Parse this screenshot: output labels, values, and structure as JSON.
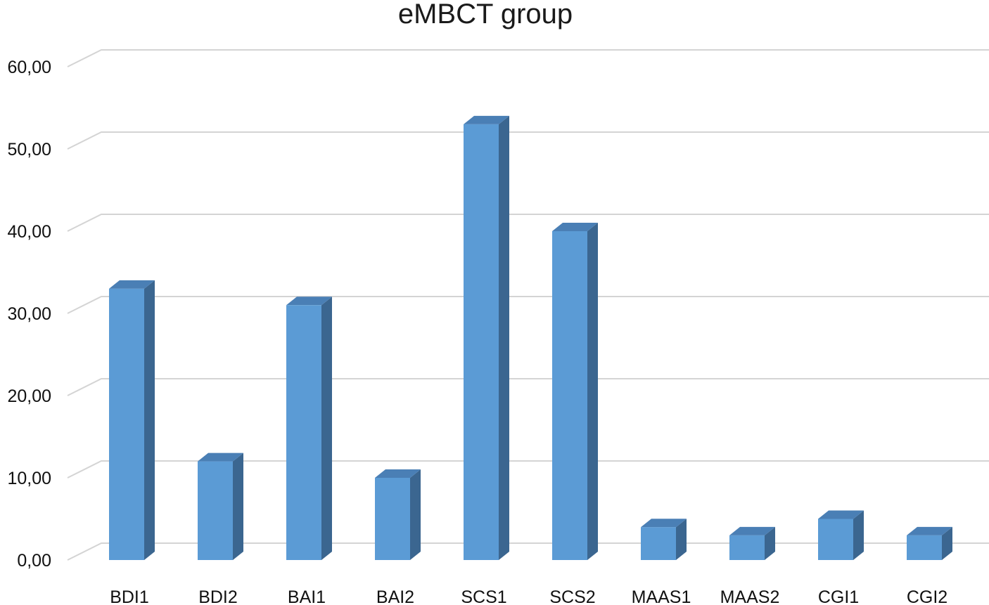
{
  "chart_data": {
    "type": "bar",
    "title": "eMBCT group",
    "xlabel": "",
    "ylabel": "",
    "categories": [
      "BDI1",
      "BDI2",
      "BAI1",
      "BAI2",
      "SCS1",
      "SCS2",
      "MAAS1",
      "MAAS2",
      "CGI1",
      "CGI2"
    ],
    "values": [
      33,
      12,
      31,
      10,
      53,
      40,
      4,
      3,
      5,
      3
    ],
    "ylim": [
      0,
      60
    ],
    "yticks": [
      0,
      10,
      20,
      30,
      40,
      50,
      60
    ],
    "ytick_labels": [
      "0,00",
      "10,00",
      "20,00",
      "30,00",
      "40,00",
      "50,00",
      "60,00"
    ],
    "grid": true,
    "legend": "none",
    "style": "3d-column",
    "colors": {
      "bar_front": "#5b9bd5",
      "bar_top": "#4a7fb5",
      "bar_side": "#3b6690",
      "gridline": "#d4d4d4"
    }
  }
}
